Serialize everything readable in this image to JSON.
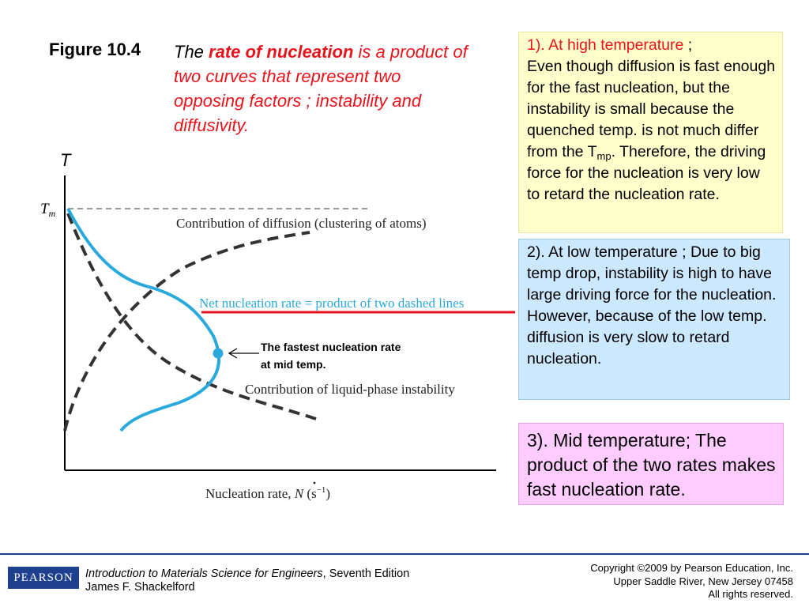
{
  "figure": {
    "label": "Figure 10.4",
    "caption_the": "The",
    "caption_emphasis": "rate of nucleation",
    "caption_rest": "is a product of two curves that represent two opposing factors ; instability and diffusivity."
  },
  "diagram": {
    "y_axis_label": "T",
    "tm_label": "T",
    "tm_sub": "m",
    "diffusion_label": "Contribution of diffusion (clustering of atoms)",
    "net_label": "Net nucleation rate = product of two dashed lines",
    "instability_label": "Contribution of liquid-phase instability",
    "fastest_line1": "The fastest nucleation rate",
    "fastest_line2": "at mid temp.",
    "x_axis_label_prefix": "Nucleation rate, ",
    "x_axis_symbol": "N",
    "x_axis_units": " (s",
    "x_axis_units_exp": "−1",
    "x_axis_units_close": ")",
    "colors": {
      "net_curve": "#2aa9dd",
      "dashed_curves": "#333333",
      "underline": "#e8141c",
      "net_label": "#2aa9dd"
    }
  },
  "boxes": {
    "high": {
      "heading": "1). At high temperature",
      "heading_tail": " ;",
      "body_a": "Even though diffusion is fast enough for the fast nucleation, but the instability is small because the quenched temp. is not much differ from the T",
      "body_sub": "mp",
      "body_b": ". Therefore, the driving force for the nucleation is very low to retard the nucleation rate."
    },
    "low": {
      "text": "2). At low temperature ; Due to big temp drop, instability is high to have large driving force for the nucleation. However, because of the low temp. diffusion is very slow to retard nucleation."
    },
    "mid": {
      "text": "3). Mid temperature; The product of the two rates makes fast nucleation rate."
    }
  },
  "footer": {
    "logo": "PEARSON",
    "book_title": "Introduction to Materials Science for Engineers",
    "book_edition": ", Seventh Edition",
    "author": "James F. Shackelford",
    "copyright_1": "Copyright ©2009 by Pearson Education, Inc.",
    "copyright_2": "Upper Saddle River, New Jersey 07458",
    "copyright_3": "All rights reserved."
  }
}
